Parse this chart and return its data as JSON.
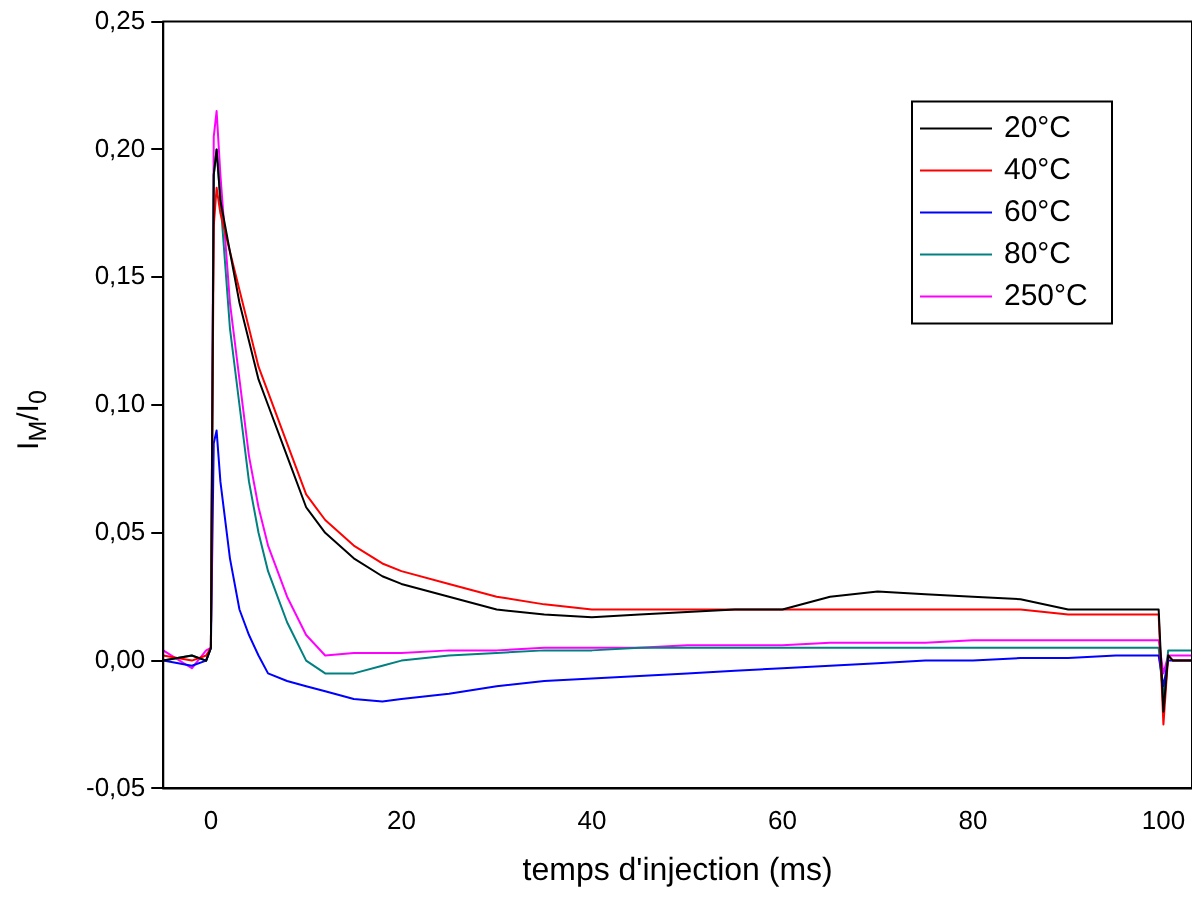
{
  "chart_data": {
    "type": "line",
    "xlabel": "temps d'injection (ms)",
    "ylabel": "I$_{M}$/I$_{0}$",
    "x": [
      -5,
      -2,
      -0.5,
      0,
      0.3,
      0.6,
      1,
      2,
      3,
      4,
      5,
      6,
      8,
      10,
      12,
      15,
      18,
      20,
      25,
      30,
      35,
      40,
      45,
      50,
      55,
      60,
      65,
      70,
      75,
      80,
      85,
      90,
      95,
      99.5,
      100,
      100.5,
      101,
      103
    ],
    "series": [
      {
        "name": "20°C",
        "color": "#000000",
        "values": [
          0,
          0.002,
          0,
          0.005,
          0.19,
          0.2,
          0.18,
          0.16,
          0.14,
          0.125,
          0.11,
          0.1,
          0.08,
          0.06,
          0.05,
          0.04,
          0.033,
          0.03,
          0.025,
          0.02,
          0.018,
          0.017,
          0.018,
          0.019,
          0.02,
          0.02,
          0.025,
          0.027,
          0.026,
          0.025,
          0.024,
          0.02,
          0.02,
          0.02,
          -0.02,
          0.002,
          0,
          0
        ]
      },
      {
        "name": "40°C",
        "color": "#ff0000",
        "values": [
          0.002,
          0,
          0.002,
          0.005,
          0.17,
          0.185,
          0.175,
          0.16,
          0.145,
          0.13,
          0.115,
          0.105,
          0.085,
          0.065,
          0.055,
          0.045,
          0.038,
          0.035,
          0.03,
          0.025,
          0.022,
          0.02,
          0.02,
          0.02,
          0.02,
          0.02,
          0.02,
          0.02,
          0.02,
          0.02,
          0.02,
          0.018,
          0.018,
          0.018,
          -0.025,
          0.002,
          0,
          0
        ]
      },
      {
        "name": "60°C",
        "color": "#0000ff",
        "values": [
          0,
          -0.002,
          0,
          0.005,
          0.085,
          0.09,
          0.07,
          0.04,
          0.02,
          0.01,
          0.002,
          -0.005,
          -0.008,
          -0.01,
          -0.012,
          -0.015,
          -0.016,
          -0.015,
          -0.013,
          -0.01,
          -0.008,
          -0.007,
          -0.006,
          -0.005,
          -0.004,
          -0.003,
          -0.002,
          -0.001,
          0,
          0,
          0.001,
          0.001,
          0.002,
          0.002,
          -0.01,
          0,
          0,
          0
        ]
      },
      {
        "name": "80°C",
        "color": "#008080",
        "values": [
          0,
          0.002,
          0,
          0.005,
          0.19,
          0.2,
          0.18,
          0.13,
          0.1,
          0.07,
          0.05,
          0.035,
          0.015,
          0,
          -0.005,
          -0.005,
          -0.002,
          0,
          0.002,
          0.003,
          0.004,
          0.004,
          0.005,
          0.005,
          0.005,
          0.005,
          0.005,
          0.005,
          0.005,
          0.005,
          0.005,
          0.005,
          0.005,
          0.005,
          -0.015,
          0.004,
          0.004,
          0.004
        ]
      },
      {
        "name": "250°C",
        "color": "#ff00ff",
        "values": [
          0.004,
          -0.003,
          0.004,
          0.005,
          0.205,
          0.215,
          0.19,
          0.14,
          0.11,
          0.08,
          0.06,
          0.045,
          0.025,
          0.01,
          0.002,
          0.003,
          0.003,
          0.003,
          0.004,
          0.004,
          0.005,
          0.005,
          0.005,
          0.006,
          0.006,
          0.006,
          0.007,
          0.007,
          0.007,
          0.008,
          0.008,
          0.008,
          0.008,
          0.008,
          -0.005,
          0.002,
          0.002,
          0.002
        ]
      }
    ],
    "xlim": [
      -5,
      103
    ],
    "xticks": [
      0,
      20,
      40,
      60,
      80,
      100
    ],
    "ylim": [
      -0.05,
      0.25
    ],
    "yticks": [
      {
        "value": -0.05,
        "label": "-0,05"
      },
      {
        "value": 0,
        "label": "0,00"
      },
      {
        "value": 0.05,
        "label": "0,05"
      },
      {
        "value": 0.1,
        "label": "0,10"
      },
      {
        "value": 0.15,
        "label": "0,15"
      },
      {
        "value": 0.2,
        "label": "0,20"
      },
      {
        "value": 0.25,
        "label": "0,25"
      }
    ],
    "legend": "top right",
    "grid": false,
    "marker": "none",
    "line_style": "solid"
  }
}
